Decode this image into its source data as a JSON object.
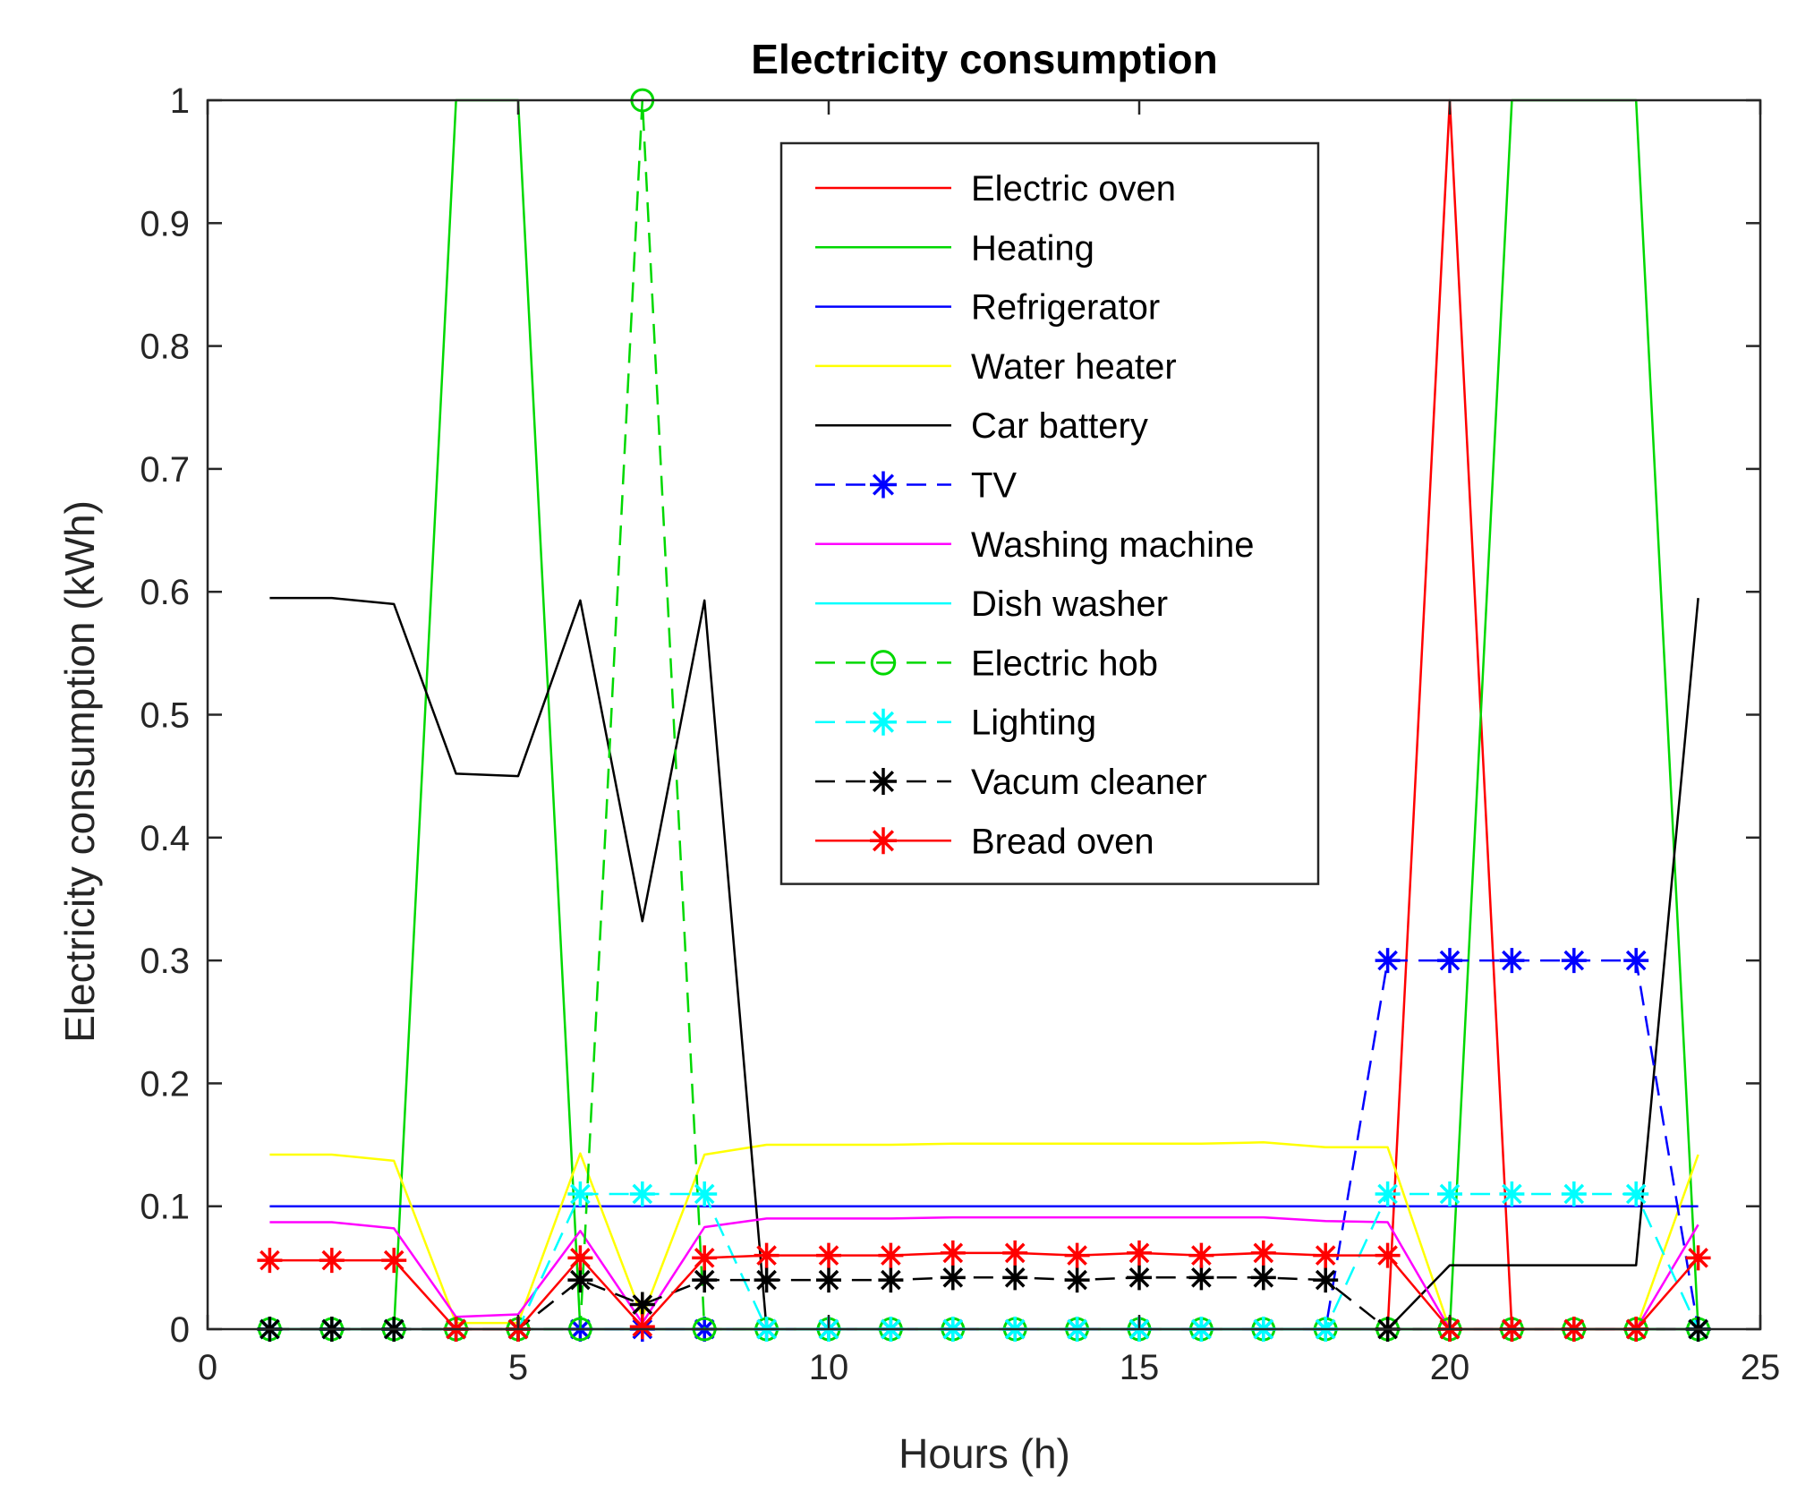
{
  "chart_data": {
    "type": "line",
    "title": "Electricity consumption",
    "xlabel": "Hours (h)",
    "ylabel": "Electricity consumption (kWh)",
    "xlim": [
      0,
      25
    ],
    "ylim": [
      0,
      1
    ],
    "xticks": [
      0,
      5,
      10,
      15,
      20,
      25
    ],
    "xtick_labels": [
      "0",
      "5",
      "10",
      "15",
      "20",
      "25"
    ],
    "yticks": [
      0,
      0.1,
      0.2,
      0.3,
      0.4,
      0.5,
      0.6,
      0.7,
      0.8,
      0.9,
      1
    ],
    "ytick_labels": [
      "0",
      "0.1",
      "0.2",
      "0.3",
      "0.4",
      "0.5",
      "0.6",
      "0.7",
      "0.8",
      "0.9",
      "1"
    ],
    "grid": false,
    "legend_position": "top-right",
    "x": [
      1,
      2,
      3,
      4,
      5,
      6,
      7,
      8,
      9,
      10,
      11,
      12,
      13,
      14,
      15,
      16,
      17,
      18,
      19,
      20,
      21,
      22,
      23,
      24
    ],
    "series": [
      {
        "name": "Electric oven",
        "color": "#ff0000",
        "line": "solid",
        "marker": "none",
        "values": [
          0,
          0,
          0,
          0,
          0,
          0,
          0,
          0,
          0,
          0,
          0,
          0,
          0,
          0,
          0,
          0,
          0,
          0,
          0,
          1,
          0,
          0,
          0,
          0
        ]
      },
      {
        "name": "Heating",
        "color": "#00d800",
        "line": "solid",
        "marker": "none",
        "values": [
          0,
          0,
          0,
          1,
          1,
          0,
          0,
          0,
          0,
          0,
          0,
          0,
          0,
          0,
          0,
          0,
          0,
          0,
          0,
          0,
          1,
          1,
          1,
          0
        ]
      },
      {
        "name": "Refrigerator",
        "color": "#0000ff",
        "line": "solid",
        "marker": "none",
        "values": [
          0.1,
          0.1,
          0.1,
          0.1,
          0.1,
          0.1,
          0.1,
          0.1,
          0.1,
          0.1,
          0.1,
          0.1,
          0.1,
          0.1,
          0.1,
          0.1,
          0.1,
          0.1,
          0.1,
          0.1,
          0.1,
          0.1,
          0.1,
          0.1
        ]
      },
      {
        "name": "Water heater",
        "color": "#ffff00",
        "line": "solid",
        "marker": "none",
        "values": [
          0.142,
          0.142,
          0.137,
          0.005,
          0.005,
          0.143,
          0.01,
          0.142,
          0.15,
          0.15,
          0.15,
          0.151,
          0.151,
          0.151,
          0.151,
          0.151,
          0.152,
          0.148,
          0.148,
          0,
          0,
          0,
          0,
          0.142
        ]
      },
      {
        "name": "Car battery",
        "color": "#000000",
        "line": "solid",
        "marker": "none",
        "values": [
          0.595,
          0.595,
          0.59,
          0.452,
          0.45,
          0.593,
          0.332,
          0.593,
          0,
          0,
          0,
          0,
          0,
          0,
          0,
          0,
          0,
          0,
          0,
          0.052,
          0.052,
          0.052,
          0.052,
          0.595
        ]
      },
      {
        "name": "TV",
        "color": "#0000ff",
        "line": "dashed",
        "marker": "star",
        "values": [
          0,
          0,
          0,
          0,
          0,
          0,
          0,
          0,
          0,
          0,
          0,
          0,
          0,
          0,
          0,
          0,
          0,
          0,
          0.3,
          0.3,
          0.3,
          0.3,
          0.3,
          0
        ]
      },
      {
        "name": "Washing machine",
        "color": "#ff00ff",
        "line": "solid",
        "marker": "none",
        "values": [
          0.087,
          0.087,
          0.082,
          0.01,
          0.012,
          0.08,
          0.005,
          0.083,
          0.09,
          0.09,
          0.09,
          0.091,
          0.091,
          0.091,
          0.091,
          0.091,
          0.091,
          0.088,
          0.087,
          0,
          0,
          0,
          0,
          0.085
        ]
      },
      {
        "name": "Dish washer",
        "color": "#00ffff",
        "line": "solid",
        "marker": "none",
        "values": [
          0,
          0,
          0,
          0,
          0,
          0,
          0,
          0,
          0,
          0,
          0,
          0,
          0,
          0,
          0,
          0,
          0,
          0,
          0,
          0,
          0,
          0,
          0,
          0
        ]
      },
      {
        "name": "Electric hob",
        "color": "#00d800",
        "line": "dashed",
        "marker": "circle",
        "values": [
          0,
          0,
          0,
          0,
          0,
          0,
          1,
          0,
          0,
          0,
          0,
          0,
          0,
          0,
          0,
          0,
          0,
          0,
          0,
          0,
          0,
          0,
          0,
          0
        ]
      },
      {
        "name": "Lighting",
        "color": "#00ffff",
        "line": "dashed",
        "marker": "star",
        "values": [
          0,
          0,
          0,
          0,
          0,
          0.11,
          0.11,
          0.11,
          0,
          0,
          0,
          0,
          0,
          0,
          0,
          0,
          0,
          0,
          0.11,
          0.11,
          0.11,
          0.11,
          0.11,
          0
        ]
      },
      {
        "name": "Vacum cleaner",
        "color": "#000000",
        "line": "dashed",
        "marker": "star",
        "values": [
          0,
          0,
          0,
          0,
          0,
          0.04,
          0.02,
          0.04,
          0.04,
          0.04,
          0.04,
          0.042,
          0.042,
          0.04,
          0.042,
          0.042,
          0.042,
          0.04,
          0,
          0,
          0,
          0,
          0,
          0
        ]
      },
      {
        "name": "Bread oven",
        "color": "#ff0000",
        "line": "solid",
        "marker": "star",
        "values": [
          0.056,
          0.056,
          0.056,
          0,
          0,
          0.058,
          0.002,
          0.058,
          0.06,
          0.06,
          0.06,
          0.062,
          0.062,
          0.06,
          0.062,
          0.06,
          0.062,
          0.06,
          0.06,
          0,
          0,
          0,
          0,
          0.058
        ]
      }
    ]
  }
}
